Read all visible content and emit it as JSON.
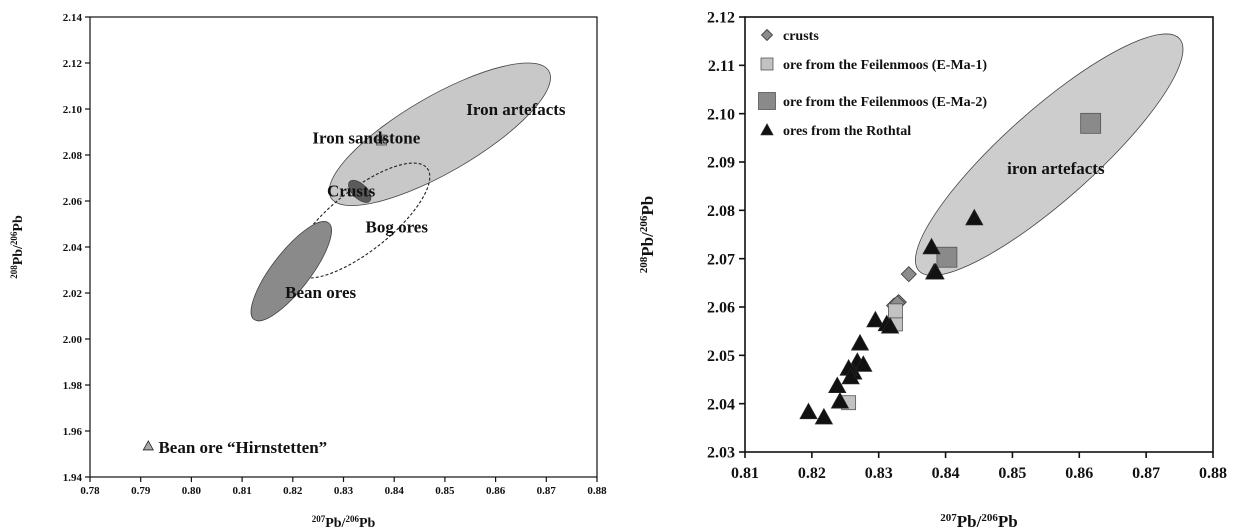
{
  "chart_data": [
    {
      "type": "scatter",
      "xlabel": {
        "sup1": "207",
        "mid": "Pb/",
        "sup2": "206",
        "tail": "Pb"
      },
      "ylabel": {
        "sup1": "208",
        "mid": "Pb/",
        "sup2": "206",
        "tail": "Pb"
      },
      "xlim": [
        0.78,
        0.88
      ],
      "ylim": [
        1.94,
        2.14
      ],
      "xticks": [
        "0.78",
        "0.79",
        "0.80",
        "0.81",
        "0.82",
        "0.83",
        "0.84",
        "0.85",
        "0.86",
        "0.87",
        "0.88"
      ],
      "yticks": [
        "1.94",
        "1.96",
        "1.98",
        "2.00",
        "2.02",
        "2.04",
        "2.06",
        "2.08",
        "2.10",
        "2.12",
        "2.14"
      ],
      "grid": false,
      "fields": [
        {
          "name": "Iron artefacts",
          "center": [
            0.849,
            2.089
          ],
          "p1": [
            0.833,
            2.063
          ],
          "p2": [
            0.876,
            2.118
          ],
          "width": 0.015,
          "fill": "#c8c8c8",
          "dashed": false
        },
        {
          "name": "Bog ores",
          "center": [
            0.8335,
            2.0515
          ],
          "p1": [
            0.8205,
            2.035
          ],
          "p2": [
            0.8465,
            2.0805
          ],
          "width": 0.012,
          "fill": "none",
          "dashed": true
        },
        {
          "name": "Bean ores",
          "center": [
            0.8197,
            2.0295
          ],
          "p1": [
            0.8123,
            2.0085
          ],
          "p2": [
            0.827,
            2.0505
          ],
          "width": 0.0075,
          "fill": "#8a8a8a",
          "dashed": false
        },
        {
          "name": "Crusts",
          "center": [
            0.8332,
            2.0642
          ],
          "p1": [
            0.8322,
            2.062
          ],
          "p2": [
            0.8342,
            2.0665
          ],
          "width": 0.0055,
          "fill": "#5a5a5a",
          "dashed": false
        }
      ],
      "points": [
        {
          "name": "Iron sandstone",
          "x": 0.8375,
          "y": 2.0865,
          "marker": "square-plus",
          "color": "#a8a8a8"
        },
        {
          "name": "Bean ore “Hirnstetten”",
          "x": 0.7915,
          "y": 1.9535,
          "marker": "triangle",
          "color": "#a8a8a8"
        }
      ],
      "annotations": [
        {
          "text": "Iron artefacts",
          "x": 0.864,
          "y": 2.1
        },
        {
          "text": "Iron sandstone",
          "x": 0.8345,
          "y": 2.0875
        },
        {
          "text": "Crusts",
          "x": 0.8315,
          "y": 2.0645
        },
        {
          "text": "Bog ores",
          "x": 0.8405,
          "y": 2.049
        },
        {
          "text": "Bean ores",
          "x": 0.8255,
          "y": 2.0205
        },
        {
          "text": "Bean ore “Hirnstetten”",
          "x": 0.7935,
          "y": 1.9525
        }
      ]
    },
    {
      "type": "scatter",
      "xlabel": {
        "sup1": "207",
        "mid": "Pb/",
        "sup2": "206",
        "tail": "Pb"
      },
      "ylabel": {
        "sup1": "208",
        "mid": "Pb/",
        "sup2": "206",
        "tail": "Pb"
      },
      "xlim": [
        0.81,
        0.88
      ],
      "ylim": [
        2.03,
        2.12
      ],
      "xticks": [
        "0.81",
        "0.82",
        "0.83",
        "0.84",
        "0.85",
        "0.86",
        "0.87",
        "0.88"
      ],
      "yticks": [
        "2.03",
        "2.04",
        "2.05",
        "2.06",
        "2.07",
        "2.08",
        "2.09",
        "2.10",
        "2.11",
        "2.12"
      ],
      "grid": false,
      "legend_position": "top-left",
      "fields": [
        {
          "name": "iron artefacts",
          "center": [
            0.8555,
            2.0915
          ],
          "p1": [
            0.8365,
            2.0685
          ],
          "p2": [
            0.8755,
            2.1165
          ],
          "width": 0.0135,
          "fill": "#cdcdcd",
          "dashed": false
        }
      ],
      "annotations": [
        {
          "text": "iron artefacts",
          "x": 0.8565,
          "y": 2.0887
        }
      ],
      "series": [
        {
          "name": "crusts",
          "marker": "diamond",
          "size": 15,
          "color": "#8c8c8c",
          "points": [
            [
              0.8345,
              2.0668
            ],
            [
              0.833,
              2.061
            ],
            [
              0.8323,
              2.0603
            ],
            [
              0.8328,
              2.0608
            ]
          ]
        },
        {
          "name": "ore from the Feilenmoos (E-Ma-1)",
          "marker": "square",
          "size": 14,
          "color": "#c2c2c2",
          "points": [
            [
              0.8325,
              2.0565
            ],
            [
              0.8255,
              2.0402
            ],
            [
              0.8325,
              2.0592
            ]
          ]
        },
        {
          "name": "ore from the Feilenmoos (E-Ma-2)",
          "marker": "square",
          "size": 20,
          "color": "#8a8a8a",
          "points": [
            [
              0.8617,
              2.098
            ],
            [
              0.8402,
              2.0703
            ]
          ]
        },
        {
          "name": "ores from the Rothtal",
          "marker": "triangle",
          "size": 17,
          "color": "#111111",
          "points": [
            [
              0.8443,
              2.0784
            ],
            [
              0.8379,
              2.0724
            ],
            [
              0.8383,
              2.0672
            ],
            [
              0.8385,
              2.0672
            ],
            [
              0.8295,
              2.0573
            ],
            [
              0.8312,
              2.0565
            ],
            [
              0.8317,
              2.056
            ],
            [
              0.8272,
              2.0525
            ],
            [
              0.8268,
              2.0487
            ],
            [
              0.8277,
              2.0481
            ],
            [
              0.8262,
              2.0465
            ],
            [
              0.8255,
              2.0473
            ],
            [
              0.8258,
              2.0455
            ],
            [
              0.8238,
              2.0437
            ],
            [
              0.8242,
              2.0405
            ],
            [
              0.8195,
              2.0383
            ],
            [
              0.8218,
              2.0372
            ]
          ]
        }
      ]
    }
  ]
}
